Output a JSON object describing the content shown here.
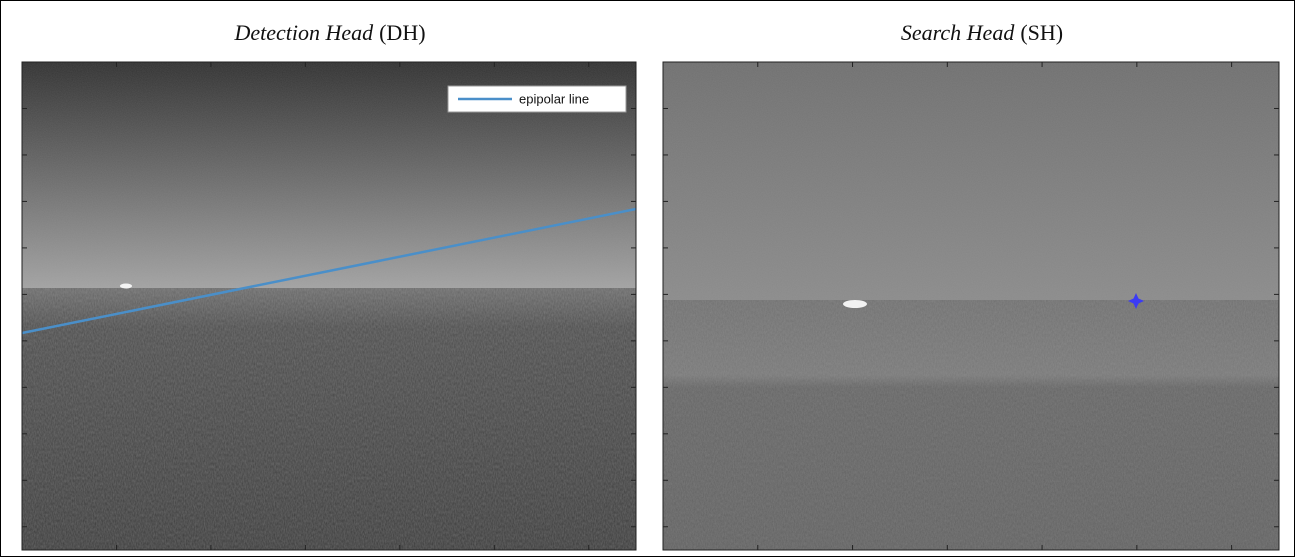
{
  "panels": [
    {
      "title_italic": "Detection Head",
      "title_suffix": "(DH)",
      "legend": "epipolar line"
    },
    {
      "title_italic": "Search Head",
      "title_suffix": "(SH)"
    }
  ]
}
